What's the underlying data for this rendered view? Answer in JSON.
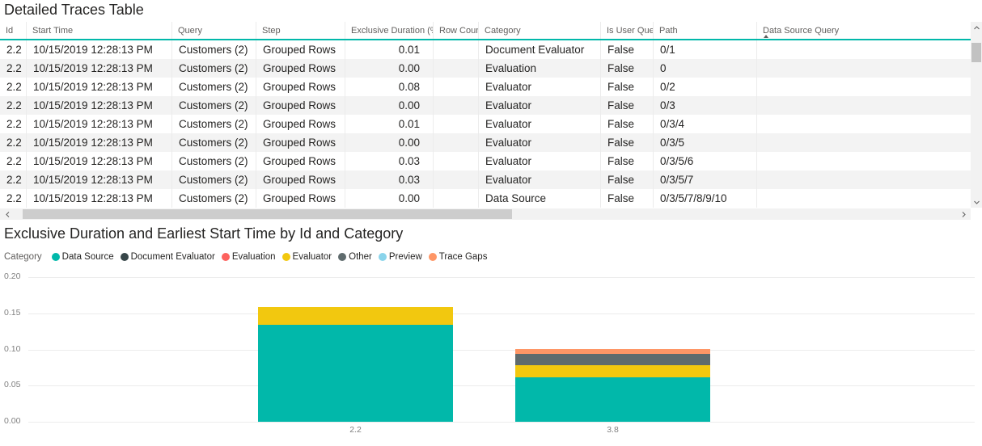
{
  "table": {
    "title": "Detailed Traces Table",
    "columns": [
      "Id",
      "Start Time",
      "Query",
      "Step",
      "Exclusive Duration (%)",
      "Row Count",
      "Category",
      "Is User Query",
      "Path",
      "Data Source Query"
    ],
    "sorted_column": "Data Source Query",
    "sort_direction": "ascending",
    "rows": [
      [
        "2.2",
        "10/15/2019 12:28:13 PM",
        "Customers (2)",
        "Grouped Rows",
        "0.01",
        "",
        "Document Evaluator",
        "False",
        "0/1",
        ""
      ],
      [
        "2.2",
        "10/15/2019 12:28:13 PM",
        "Customers (2)",
        "Grouped Rows",
        "0.00",
        "",
        "Evaluation",
        "False",
        "0",
        ""
      ],
      [
        "2.2",
        "10/15/2019 12:28:13 PM",
        "Customers (2)",
        "Grouped Rows",
        "0.08",
        "",
        "Evaluator",
        "False",
        "0/2",
        ""
      ],
      [
        "2.2",
        "10/15/2019 12:28:13 PM",
        "Customers (2)",
        "Grouped Rows",
        "0.00",
        "",
        "Evaluator",
        "False",
        "0/3",
        ""
      ],
      [
        "2.2",
        "10/15/2019 12:28:13 PM",
        "Customers (2)",
        "Grouped Rows",
        "0.01",
        "",
        "Evaluator",
        "False",
        "0/3/4",
        ""
      ],
      [
        "2.2",
        "10/15/2019 12:28:13 PM",
        "Customers (2)",
        "Grouped Rows",
        "0.00",
        "",
        "Evaluator",
        "False",
        "0/3/5",
        ""
      ],
      [
        "2.2",
        "10/15/2019 12:28:13 PM",
        "Customers (2)",
        "Grouped Rows",
        "0.03",
        "",
        "Evaluator",
        "False",
        "0/3/5/6",
        ""
      ],
      [
        "2.2",
        "10/15/2019 12:28:13 PM",
        "Customers (2)",
        "Grouped Rows",
        "0.03",
        "",
        "Evaluator",
        "False",
        "0/3/5/7",
        ""
      ],
      [
        "2.2",
        "10/15/2019 12:28:13 PM",
        "Customers (2)",
        "Grouped Rows",
        "0.00",
        "",
        "Data Source",
        "False",
        "0/3/5/7/8/9/10",
        ""
      ]
    ]
  },
  "chart_data": {
    "type": "bar",
    "stacked": true,
    "title": "Exclusive Duration and Earliest Start Time by Id and Category",
    "legend_title": "Category",
    "legend_position": "top-left",
    "categories": [
      "2.2",
      "3.8"
    ],
    "series": [
      {
        "name": "Data Source",
        "color": "#01B8AA",
        "values": [
          0.134,
          0.061
        ]
      },
      {
        "name": "Document Evaluator",
        "color": "#374649",
        "values": [
          0,
          0
        ]
      },
      {
        "name": "Evaluation",
        "color": "#FD625E",
        "values": [
          0,
          0
        ]
      },
      {
        "name": "Evaluator",
        "color": "#F2C80F",
        "values": [
          0.025,
          0.017
        ]
      },
      {
        "name": "Other",
        "color": "#5F6B6D",
        "values": [
          0,
          0.016
        ]
      },
      {
        "name": "Preview",
        "color": "#8AD4EB",
        "values": [
          0,
          0
        ]
      },
      {
        "name": "Trace Gaps",
        "color": "#FE9666",
        "values": [
          0,
          0.007
        ]
      }
    ],
    "xlabel": "",
    "ylabel": "",
    "ylim": [
      0,
      0.2
    ],
    "yticks": [
      0,
      0.05,
      0.1,
      0.15,
      0.2
    ],
    "grid": true,
    "accent_color": "#01B8AA"
  }
}
